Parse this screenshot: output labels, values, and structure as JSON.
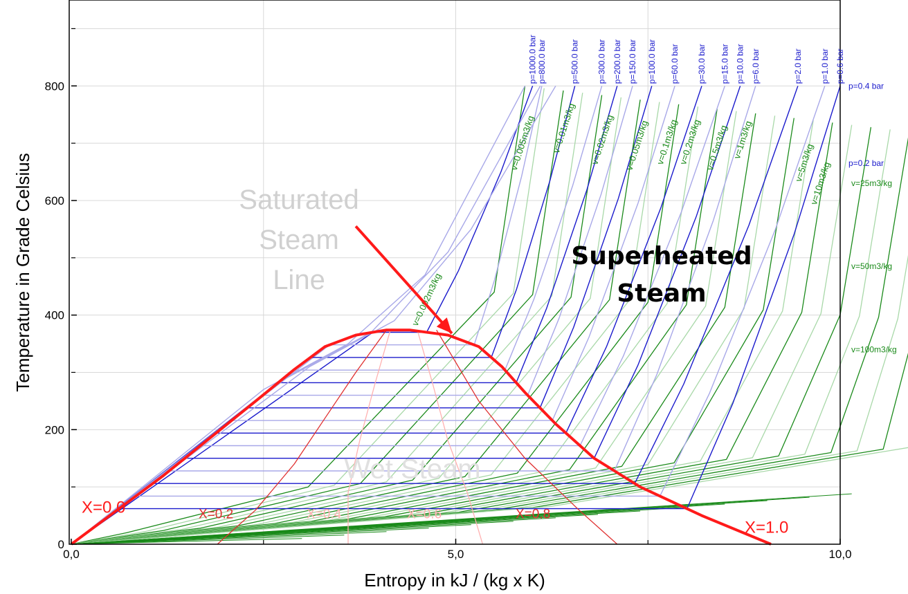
{
  "chart_data": {
    "type": "line",
    "title": "",
    "xlabel": "Entropy in kJ / (kg x K)",
    "ylabel": "Temperature in Grade Celsius",
    "xlim": [
      0,
      10
    ],
    "ylim": [
      0,
      950
    ],
    "x_ticks": [
      0,
      5,
      10
    ],
    "x_tick_labels": [
      "0,0",
      "5,0",
      "10,0"
    ],
    "y_ticks": [
      0,
      200,
      400,
      600,
      800
    ],
    "y_tick_labels": [
      "0",
      "200",
      "400",
      "600",
      "800"
    ],
    "grid": true,
    "saturation_curve": {
      "x": [
        0.0,
        0.6,
        1.2,
        1.8,
        2.4,
        2.9,
        3.3,
        3.7,
        4.1,
        4.4,
        4.9,
        5.3,
        5.6,
        5.9,
        6.3,
        6.8,
        7.4,
        8.2,
        9.1
      ],
      "y": [
        0,
        60,
        120,
        185,
        250,
        305,
        345,
        365,
        374,
        374,
        365,
        345,
        310,
        265,
        210,
        150,
        100,
        50,
        0
      ]
    },
    "quality_lines": [
      {
        "name": "X=0.2",
        "label": "X=0.2",
        "x": [
          1.9,
          2.4,
          2.9,
          3.3,
          3.7,
          4.1
        ],
        "y": [
          0,
          60,
          140,
          220,
          300,
          374
        ]
      },
      {
        "name": "X=0.4",
        "label": "X=0.4",
        "x": [
          3.6,
          3.6,
          3.75,
          3.95,
          4.15
        ],
        "y": [
          0,
          90,
          180,
          280,
          374
        ]
      },
      {
        "name": "X=0.6",
        "label": "X=0.6",
        "x": [
          5.35,
          5.15,
          4.9,
          4.7,
          4.5
        ],
        "y": [
          0,
          90,
          180,
          280,
          374
        ]
      },
      {
        "name": "X=0.8",
        "label": "X=0.8",
        "x": [
          7.1,
          6.6,
          5.9,
          5.3,
          4.75
        ],
        "y": [
          0,
          60,
          150,
          250,
          374
        ]
      }
    ],
    "quality_end_labels": {
      "x0": "X=0.0",
      "x1": "X=1.0"
    },
    "isobars": [
      {
        "label": "p=1000.0 bar",
        "top_x": 6.0,
        "top_y": 800
      },
      {
        "label": "p=800.0 bar",
        "top_x": 6.12,
        "top_y": 800
      },
      {
        "label": "p=500.0 bar",
        "top_x": 6.55,
        "top_y": 800
      },
      {
        "label": "p=300.0 bar",
        "top_x": 6.9,
        "top_y": 800
      },
      {
        "label": "p=200.0 bar",
        "top_x": 7.1,
        "top_y": 800
      },
      {
        "label": "p=150.0 bar",
        "top_x": 7.3,
        "top_y": 800
      },
      {
        "label": "p=100.0 bar",
        "top_x": 7.55,
        "top_y": 800
      },
      {
        "label": "p=60.0 bar",
        "top_x": 7.85,
        "top_y": 800
      },
      {
        "label": "p=30.0 bar",
        "top_x": 8.2,
        "top_y": 800
      },
      {
        "label": "p=15.0 bar",
        "top_x": 8.5,
        "top_y": 800
      },
      {
        "label": "p=10.0 bar",
        "top_x": 8.7,
        "top_y": 800
      },
      {
        "label": "p=6.0 bar",
        "top_x": 8.9,
        "top_y": 800
      },
      {
        "label": "p=2.0 bar",
        "top_x": 9.45,
        "top_y": 800
      },
      {
        "label": "p=1.0 bar",
        "top_x": 9.8,
        "top_y": 800
      },
      {
        "label": "p=0.6 bar",
        "top_x": 10.0,
        "top_y": 800
      }
    ],
    "isobars_outside": [
      {
        "label": "p=0.4 bar",
        "y": 800
      },
      {
        "label": "p=0.2 bar",
        "y": 665
      }
    ],
    "isochores_inside": [
      {
        "label": "v=0.005m3/kg",
        "s": 6.15,
        "t": 700
      },
      {
        "label": "v=0.01m3/kg",
        "s": 6.7,
        "t": 730
      },
      {
        "label": "v=0.02m3/kg",
        "s": 7.2,
        "t": 710
      },
      {
        "label": "v=0.05m3/kg",
        "s": 7.65,
        "t": 700
      },
      {
        "label": "v=0.1m3/kg",
        "s": 8.05,
        "t": 710
      },
      {
        "label": "v=0.2m3/kg",
        "s": 8.35,
        "t": 710
      },
      {
        "label": "v=0.5m3/kg",
        "s": 8.7,
        "t": 700
      },
      {
        "label": "v=1m3/kg",
        "s": 9.05,
        "t": 720
      },
      {
        "label": "v=5m3/kg",
        "s": 9.85,
        "t": 680
      },
      {
        "label": "v=10m3/kg",
        "s": 10.05,
        "t": 640
      }
    ],
    "isochores_outside": [
      {
        "label": "v=25m3/kg",
        "y": 630
      },
      {
        "label": "v=50m3/kg",
        "y": 485
      },
      {
        "label": "v=100m3/kg",
        "y": 340
      }
    ],
    "isochore_extra_label": "v=0.002m3/kg",
    "region_labels": {
      "saturated": [
        "Saturated",
        "Steam",
        "Line"
      ],
      "superheated": [
        "Superheated",
        "Steam"
      ],
      "wet": "Wet Steam"
    },
    "arrow": {
      "from": [
        3.7,
        555
      ],
      "to": [
        4.95,
        368
      ]
    },
    "colors": {
      "isobar": "#1a1acc",
      "isobar_light": "#a8a8e8",
      "isochore": "#1a8a1a",
      "isochore_light": "#a8d8a8",
      "saturation": "#ff1a1a",
      "quality": "#e03030",
      "quality_light": "#ffb0b0",
      "grid": "#d8d8d8"
    }
  }
}
